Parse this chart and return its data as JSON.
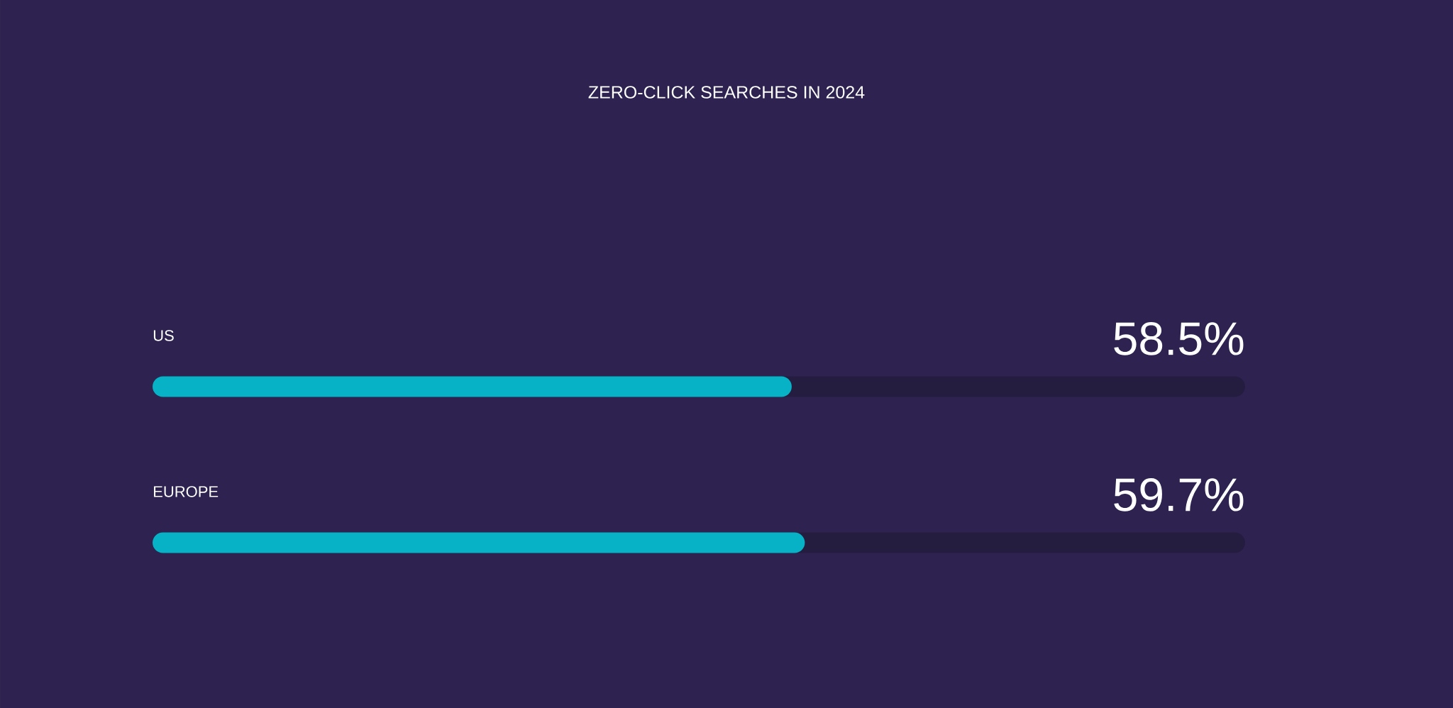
{
  "chart_data": {
    "type": "bar",
    "orientation": "horizontal",
    "title": "ZERO-CLICK SEARCHES IN 2024",
    "categories": [
      "US",
      "EUROPE"
    ],
    "values": [
      58.5,
      59.7
    ],
    "value_labels": [
      "58.5%",
      "59.7%"
    ],
    "color": "#08b2c6",
    "xlim": [
      0,
      100
    ]
  }
}
